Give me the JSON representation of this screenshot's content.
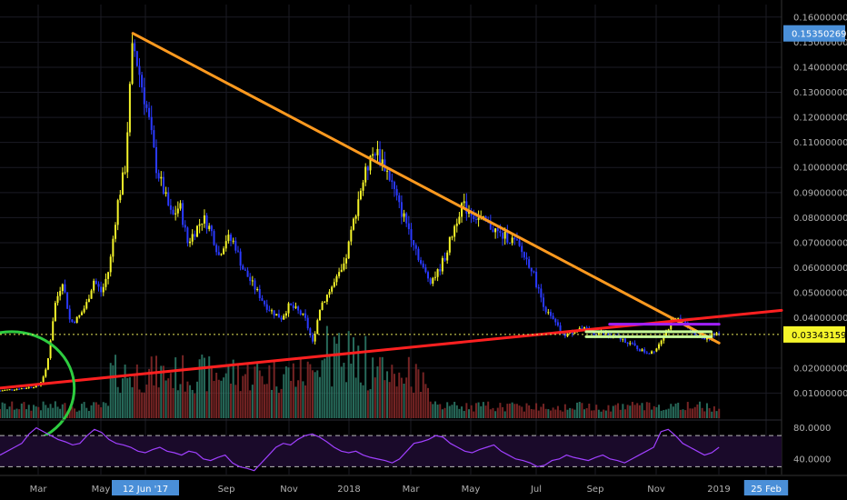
{
  "chart_data": {
    "type": "candlestick",
    "x_axis": {
      "tick_labels": [
        "Mar",
        "May",
        "12 Jun '17",
        "Sep",
        "Nov",
        "2018",
        "Mar",
        "May",
        "Jul",
        "Sep",
        "Nov",
        "2019",
        "25 Feb"
      ],
      "highlighted": [
        "12 Jun '17",
        "25 Feb"
      ]
    },
    "price_panel": {
      "ylim": [
        0,
        0.165
      ],
      "tick_labels": [
        "0.16000000",
        "0.15000000",
        "0.14000000",
        "0.13000000",
        "0.12000000",
        "0.11000000",
        "0.10000000",
        "0.09000000",
        "0.08000000",
        "0.07000000",
        "0.06000000",
        "0.05000000",
        "0.04000000",
        "0.02000000",
        "0.01000000"
      ],
      "tick_values": [
        0.16,
        0.15,
        0.14,
        0.13,
        0.12,
        0.11,
        0.1,
        0.09,
        0.08,
        0.07,
        0.06,
        0.05,
        0.04,
        0.02,
        0.01
      ],
      "high_label": "0.15350269",
      "high_value": 0.1535,
      "last_label": "0.03343159",
      "last_value": 0.0334,
      "price_path": [
        [
          0.0,
          0.011
        ],
        [
          0.03,
          0.012
        ],
        [
          0.05,
          0.013
        ],
        [
          0.06,
          0.02
        ],
        [
          0.07,
          0.045
        ],
        [
          0.08,
          0.055
        ],
        [
          0.09,
          0.038
        ],
        [
          0.1,
          0.04
        ],
        [
          0.11,
          0.045
        ],
        [
          0.12,
          0.055
        ],
        [
          0.13,
          0.05
        ],
        [
          0.14,
          0.06
        ],
        [
          0.15,
          0.085
        ],
        [
          0.16,
          0.1
        ],
        [
          0.17,
          0.15
        ],
        [
          0.18,
          0.135
        ],
        [
          0.19,
          0.12
        ],
        [
          0.2,
          0.1
        ],
        [
          0.21,
          0.09
        ],
        [
          0.22,
          0.08
        ],
        [
          0.23,
          0.085
        ],
        [
          0.24,
          0.07
        ],
        [
          0.25,
          0.075
        ],
        [
          0.26,
          0.08
        ],
        [
          0.27,
          0.075
        ],
        [
          0.28,
          0.065
        ],
        [
          0.29,
          0.072
        ],
        [
          0.3,
          0.07
        ],
        [
          0.31,
          0.06
        ],
        [
          0.32,
          0.055
        ],
        [
          0.33,
          0.05
        ],
        [
          0.34,
          0.045
        ],
        [
          0.35,
          0.042
        ],
        [
          0.36,
          0.04
        ],
        [
          0.37,
          0.045
        ],
        [
          0.38,
          0.043
        ],
        [
          0.39,
          0.04
        ],
        [
          0.4,
          0.03
        ],
        [
          0.41,
          0.045
        ],
        [
          0.42,
          0.05
        ],
        [
          0.43,
          0.055
        ],
        [
          0.44,
          0.06
        ],
        [
          0.45,
          0.075
        ],
        [
          0.46,
          0.09
        ],
        [
          0.47,
          0.1
        ],
        [
          0.48,
          0.107
        ],
        [
          0.49,
          0.102
        ],
        [
          0.5,
          0.095
        ],
        [
          0.51,
          0.085
        ],
        [
          0.52,
          0.078
        ],
        [
          0.53,
          0.07
        ],
        [
          0.54,
          0.06
        ],
        [
          0.55,
          0.055
        ],
        [
          0.56,
          0.058
        ],
        [
          0.57,
          0.065
        ],
        [
          0.58,
          0.075
        ],
        [
          0.59,
          0.085
        ],
        [
          0.6,
          0.083
        ],
        [
          0.61,
          0.08
        ],
        [
          0.62,
          0.078
        ],
        [
          0.63,
          0.076
        ],
        [
          0.64,
          0.073
        ],
        [
          0.65,
          0.072
        ],
        [
          0.66,
          0.07
        ],
        [
          0.67,
          0.065
        ],
        [
          0.68,
          0.06
        ],
        [
          0.69,
          0.05
        ],
        [
          0.7,
          0.042
        ],
        [
          0.71,
          0.038
        ],
        [
          0.72,
          0.033
        ],
        [
          0.73,
          0.034
        ],
        [
          0.74,
          0.036
        ],
        [
          0.75,
          0.035
        ],
        [
          0.76,
          0.034
        ],
        [
          0.77,
          0.034
        ],
        [
          0.78,
          0.033
        ],
        [
          0.79,
          0.032
        ],
        [
          0.8,
          0.031
        ],
        [
          0.81,
          0.029
        ],
        [
          0.82,
          0.027
        ],
        [
          0.83,
          0.026
        ],
        [
          0.84,
          0.028
        ],
        [
          0.85,
          0.034
        ],
        [
          0.86,
          0.038
        ],
        [
          0.87,
          0.04
        ],
        [
          0.88,
          0.036
        ],
        [
          0.89,
          0.034
        ],
        [
          0.9,
          0.032
        ],
        [
          0.91,
          0.033
        ],
        [
          0.92,
          0.0334
        ]
      ],
      "trendlines": [
        {
          "color": "#ff9a1f",
          "from": [
            0.17,
            0.1535
          ],
          "to": [
            0.92,
            0.03
          ]
        },
        {
          "color": "#ff2020",
          "from": [
            0.0,
            0.012
          ],
          "to": [
            1.0,
            0.043
          ]
        },
        {
          "color": "#a020ff",
          "from": [
            0.78,
            0.0375
          ],
          "to": [
            0.92,
            0.0375
          ]
        },
        {
          "color": "#c8ff9a",
          "from": [
            0.75,
            0.0345
          ],
          "to": [
            0.91,
            0.0345
          ]
        },
        {
          "color": "#c8ff9a",
          "from": [
            0.75,
            0.0325
          ],
          "to": [
            0.91,
            0.0325
          ]
        }
      ],
      "ellipse": {
        "color": "#2ecc40",
        "center": [
          0.015,
          0.012
        ],
        "radius": [
          0.08,
          0.009
        ]
      },
      "colors": {
        "up": "#f5f52a",
        "down": "#2a3aff",
        "vol_up": "#2e7d6a",
        "vol_down": "#8b2a2a"
      }
    },
    "rsi_panel": {
      "tick_labels": [
        "80.0000",
        "40.0000"
      ],
      "upper": 70,
      "lower": 30,
      "line_color": "#a040ff",
      "values": [
        45,
        50,
        55,
        60,
        72,
        80,
        75,
        70,
        65,
        62,
        58,
        60,
        70,
        78,
        74,
        65,
        60,
        58,
        55,
        50,
        48,
        52,
        55,
        50,
        48,
        45,
        50,
        48,
        40,
        38,
        42,
        45,
        35,
        30,
        28,
        25,
        35,
        45,
        55,
        60,
        58,
        65,
        70,
        72,
        68,
        62,
        55,
        50,
        48,
        50,
        45,
        42,
        40,
        38,
        35,
        40,
        50,
        60,
        62,
        65,
        70,
        68,
        60,
        55,
        50,
        48,
        52,
        55,
        58,
        50,
        45,
        40,
        38,
        35,
        30,
        32,
        38,
        40,
        45,
        42,
        40,
        38,
        42,
        45,
        40,
        38,
        35,
        40,
        45,
        50,
        55,
        75,
        78,
        70,
        60,
        55,
        50,
        45,
        48,
        55
      ]
    }
  }
}
